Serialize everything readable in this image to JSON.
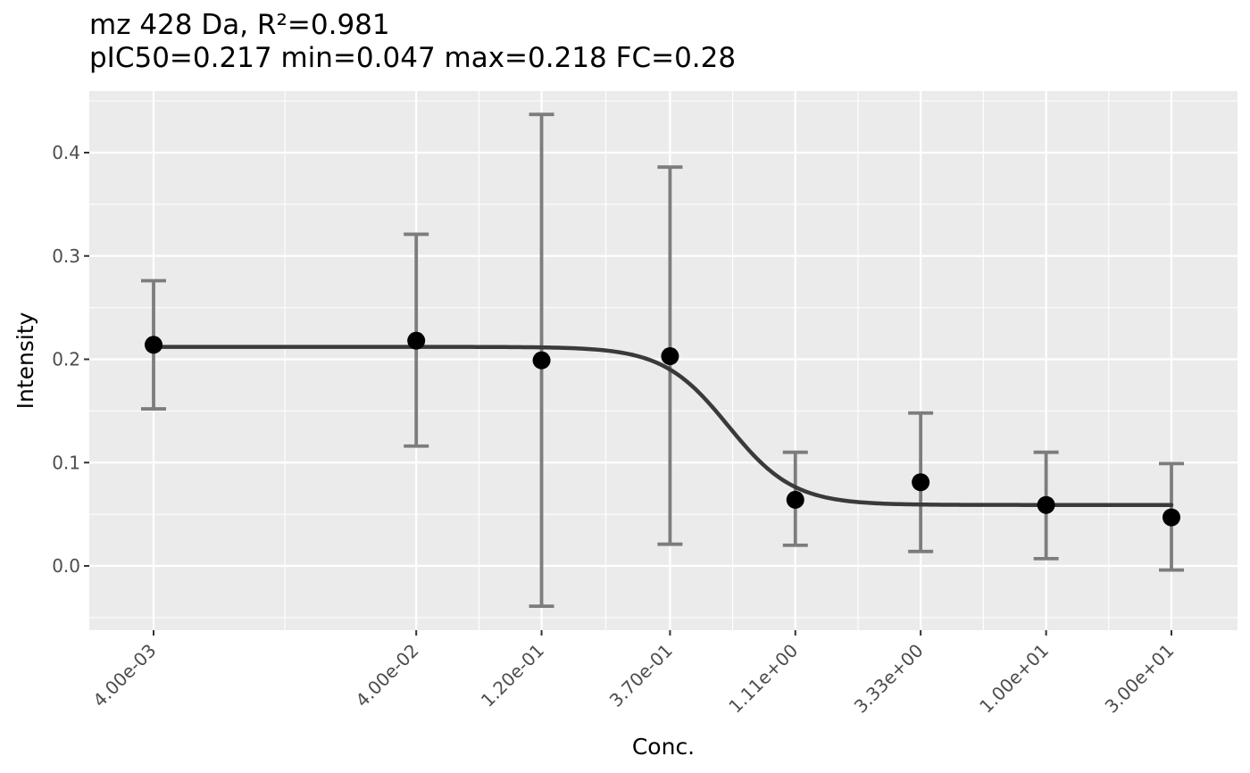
{
  "chart_data": {
    "type": "scatter",
    "title": "mz 428 Da, R²=0.981",
    "subtitle": "pIC50=0.217 min=0.047 max=0.218 FC=0.28",
    "xlabel": "Conc.",
    "ylabel": "Intensity",
    "x_scale": "log10",
    "x_tick_labels": [
      "4.00e-03",
      "4.00e-02",
      "1.20e-01",
      "3.70e-01",
      "1.11e+00",
      "3.33e+00",
      "1.00e+01",
      "3.00e+01"
    ],
    "x": [
      0.004,
      0.04,
      0.12,
      0.37,
      1.11,
      3.33,
      10,
      30
    ],
    "y_ticks": [
      "0.0",
      "0.1",
      "0.2",
      "0.3",
      "0.4"
    ],
    "ylim": [
      -0.063,
      0.46
    ],
    "grid": true,
    "series": [
      {
        "type": "points_with_errorbars",
        "y": [
          0.214,
          0.218,
          0.199,
          0.203,
          0.064,
          0.081,
          0.059,
          0.047
        ],
        "ymin": [
          0.152,
          0.116,
          -0.039,
          0.021,
          0.02,
          0.014,
          0.007,
          -0.004
        ],
        "ymax": [
          0.276,
          0.321,
          0.437,
          0.386,
          0.11,
          0.148,
          0.11,
          0.099
        ],
        "color": "#000000",
        "errorbar_color": "#777777"
      },
      {
        "type": "fit_curve",
        "model": "sigmoid",
        "top": 0.212,
        "bottom": 0.059,
        "log_ic50": -0.21,
        "hill": 3.5,
        "color": "#3a3a3a"
      }
    ]
  }
}
